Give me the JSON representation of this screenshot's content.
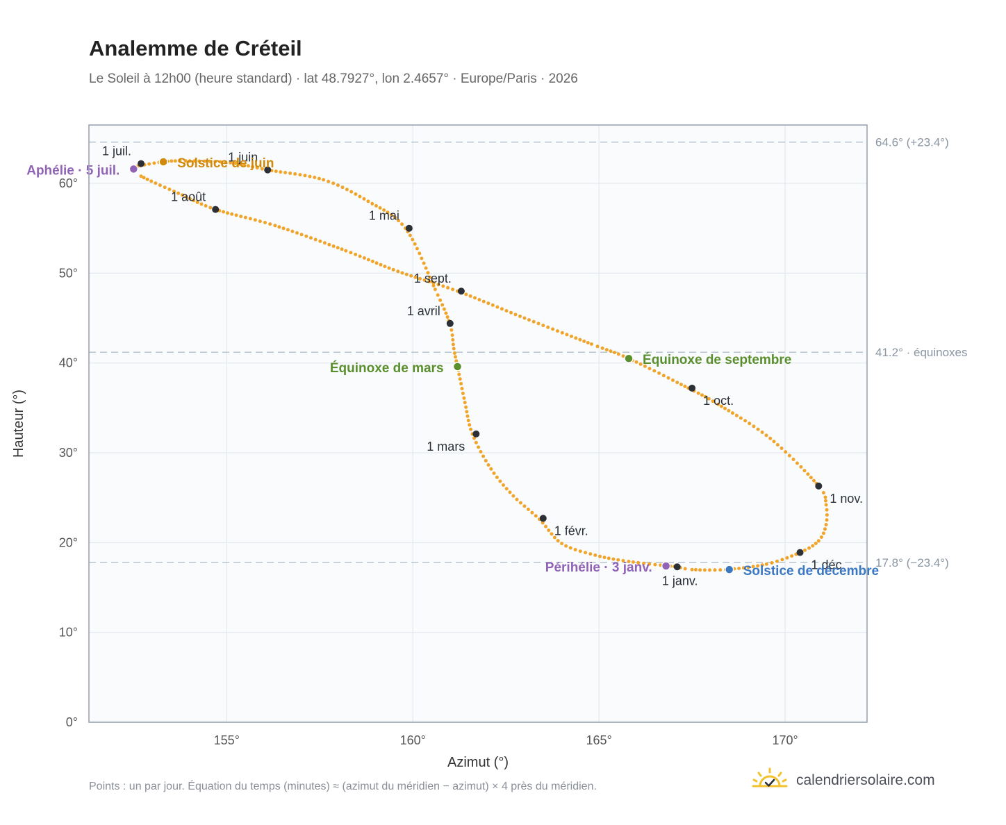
{
  "header": {
    "title": "Analemme de Créteil",
    "subtitle": "Le Soleil à 12h00 (heure standard) · lat 48.7927°, lon 2.4657° · Europe/Paris · 2026"
  },
  "footer": {
    "note": "Points : un par jour. Équation du temps (minutes) ≈ (azimut du méridien − azimut) × 4 près du méridien.",
    "brand": "calendriersolaire.com"
  },
  "chart_data": {
    "type": "scatter",
    "xlabel": "Azimut (°)",
    "ylabel": "Hauteur (°)",
    "xlim": [
      151.3,
      172.2
    ],
    "ylim": [
      0,
      66.5
    ],
    "xticks": [
      155,
      160,
      165,
      170
    ],
    "yticks": [
      0,
      10,
      20,
      30,
      40,
      50,
      60
    ],
    "tick_suffix": "°",
    "grid": true,
    "colors": {
      "path": "#f0a52a",
      "month_marker": "#2b2f36",
      "summer_solstice": "#d08a0c",
      "winter_solstice": "#3b78c2",
      "equinox": "#5a8f2e",
      "apsis": "#9163b5",
      "reference": "#b8c4cf"
    },
    "reference_lines": [
      {
        "y": 64.6,
        "label": "64.6° (+23.4°)"
      },
      {
        "y": 41.2,
        "label": "41.2° · équinoxes"
      },
      {
        "y": 17.8,
        "label": "17.8° (−23.4°)"
      }
    ],
    "path_points": [
      [
        167.1,
        17.3
      ],
      [
        165.8,
        17.9
      ],
      [
        164.9,
        18.6
      ],
      [
        164.0,
        19.9
      ],
      [
        163.4,
        22.6
      ],
      [
        162.7,
        25.2
      ],
      [
        162.1,
        28.2
      ],
      [
        161.6,
        32.1
      ],
      [
        161.4,
        35.6
      ],
      [
        161.2,
        39.6
      ],
      [
        161.1,
        41.6
      ],
      [
        161.0,
        44.3
      ],
      [
        160.6,
        48.2
      ],
      [
        159.8,
        55.0
      ],
      [
        158.8,
        58.0
      ],
      [
        157.6,
        60.4
      ],
      [
        156.1,
        61.5
      ],
      [
        155.1,
        62.3
      ],
      [
        153.9,
        62.5
      ],
      [
        153.3,
        62.4
      ],
      [
        152.6,
        61.9
      ],
      [
        152.5,
        61.6
      ],
      [
        152.7,
        60.8
      ],
      [
        153.7,
        58.9
      ],
      [
        154.7,
        57.1
      ],
      [
        156.3,
        55.3
      ],
      [
        158.2,
        52.5
      ],
      [
        159.6,
        50.2
      ],
      [
        161.2,
        48.0
      ],
      [
        163.0,
        45.0
      ],
      [
        164.8,
        42.1
      ],
      [
        165.8,
        40.5
      ],
      [
        167.4,
        37.2
      ],
      [
        168.2,
        35.4
      ],
      [
        169.6,
        31.6
      ],
      [
        170.9,
        26.3
      ],
      [
        171.1,
        24.2
      ],
      [
        171.1,
        22.0
      ],
      [
        170.9,
        20.2
      ],
      [
        170.4,
        18.9
      ],
      [
        169.5,
        17.6
      ],
      [
        168.4,
        17.0
      ],
      [
        167.5,
        17.0
      ],
      [
        167.1,
        17.3
      ]
    ],
    "month_markers": [
      {
        "label": "1 janv.",
        "x": 167.1,
        "y": 17.3,
        "pos": "below"
      },
      {
        "label": "1 févr.",
        "x": 163.5,
        "y": 22.7,
        "pos": "below-right"
      },
      {
        "label": "1 mars",
        "x": 161.7,
        "y": 32.1,
        "pos": "below-left"
      },
      {
        "label": "1 avril",
        "x": 161.0,
        "y": 44.4,
        "pos": "above-left"
      },
      {
        "label": "1 mai",
        "x": 159.9,
        "y": 55.0,
        "pos": "above-left"
      },
      {
        "label": "1 juin",
        "x": 156.1,
        "y": 61.5,
        "pos": "above-left"
      },
      {
        "label": "1 juil.",
        "x": 152.7,
        "y": 62.2,
        "pos": "above-left"
      },
      {
        "label": "1 août",
        "x": 154.7,
        "y": 57.1,
        "pos": "above-left"
      },
      {
        "label": "1 sept.",
        "x": 161.3,
        "y": 48.0,
        "pos": "above-left"
      },
      {
        "label": "1 oct.",
        "x": 167.5,
        "y": 37.2,
        "pos": "below-right"
      },
      {
        "label": "1 nov.",
        "x": 170.9,
        "y": 26.3,
        "pos": "below-right"
      },
      {
        "label": "1 déc.",
        "x": 170.4,
        "y": 18.9,
        "pos": "below-right"
      }
    ],
    "events": [
      {
        "label": "Solstice de juin",
        "x": 153.3,
        "y": 62.4,
        "color_key": "summer_solstice",
        "pos": "right"
      },
      {
        "label": "Aphélie · 5 juil.",
        "x": 152.5,
        "y": 61.6,
        "color_key": "apsis",
        "pos": "left"
      },
      {
        "label": "Équinoxe de mars",
        "x": 161.2,
        "y": 39.6,
        "color_key": "equinox",
        "pos": "left"
      },
      {
        "label": "Équinoxe de septembre",
        "x": 165.8,
        "y": 40.5,
        "color_key": "equinox",
        "pos": "right"
      },
      {
        "label": "Périhélie · 3 janv.",
        "x": 166.8,
        "y": 17.4,
        "color_key": "apsis",
        "pos": "left"
      },
      {
        "label": "Solstice de décembre",
        "x": 168.5,
        "y": 17.0,
        "color_key": "winter_solstice",
        "pos": "right"
      }
    ]
  }
}
